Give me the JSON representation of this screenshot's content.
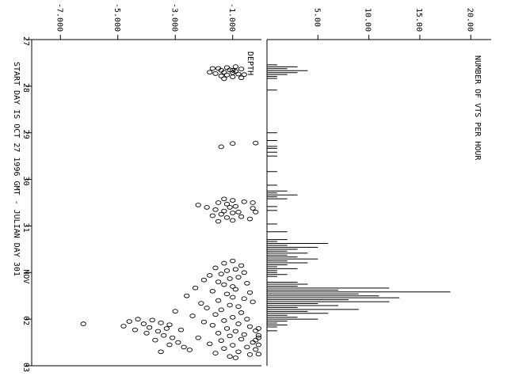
{
  "chart_data": {
    "type": "scatter+bar",
    "title": "NUMBER OF VTS PER HOUR",
    "xlabel": "START DAY IS OCT 27 1996 GMT - JULIAN DAY 301",
    "x_ticks": [
      "27",
      "28",
      "29",
      "30",
      "31",
      "NOV",
      "02",
      "03"
    ],
    "x_range_days": [
      27,
      34
    ],
    "histogram": {
      "ylabel": "NUMBER OF VTS PER HOUR",
      "y_ticks": [
        "5.00",
        "10.00",
        "15.00",
        "20.00"
      ],
      "ylim": [
        0,
        22
      ],
      "bins_hours_since_start": [
        13,
        14,
        15,
        16,
        17,
        18,
        19,
        20,
        26,
        48,
        52,
        55,
        56,
        58,
        60,
        68,
        75,
        78,
        79,
        80,
        81,
        82,
        86,
        88,
        95,
        99,
        103,
        104,
        105,
        106,
        107,
        108,
        109,
        110,
        111,
        112,
        113,
        114,
        115,
        116,
        117,
        118,
        119,
        120,
        121,
        122,
        125,
        126,
        127,
        128,
        129,
        130,
        131,
        132,
        133,
        134,
        135,
        136,
        137,
        138,
        139,
        140,
        141,
        142,
        143,
        144,
        145,
        146,
        147,
        148,
        150
      ],
      "counts": [
        1,
        3,
        2,
        4,
        3,
        2,
        1,
        1,
        1,
        1,
        1,
        1,
        1,
        1,
        1,
        1,
        1,
        2,
        1,
        3,
        1,
        2,
        1,
        1,
        1,
        2,
        2,
        1,
        6,
        2,
        5,
        3,
        2,
        4,
        2,
        3,
        5,
        2,
        4,
        2,
        1,
        3,
        1,
        1,
        2,
        1,
        3,
        4,
        3,
        12,
        7,
        18,
        9,
        11,
        13,
        8,
        12,
        5,
        7,
        3,
        9,
        4,
        6,
        2,
        3,
        5,
        2,
        1,
        2,
        1,
        1
      ]
    },
    "scatter": {
      "ylabel": "DEPTH",
      "y_ticks": [
        "-1.000",
        "-3.000",
        "-5.000",
        "-7.000"
      ],
      "ylim": [
        -8,
        0
      ],
      "points_days_depth": [
        [
          27.58,
          -0.9
        ],
        [
          27.6,
          -1.2
        ],
        [
          27.62,
          -1.5
        ],
        [
          27.63,
          -0.7
        ],
        [
          27.65,
          -1.1
        ],
        [
          27.66,
          -1.4
        ],
        [
          27.68,
          -0.9
        ],
        [
          27.7,
          -1.3
        ],
        [
          27.71,
          -1.0
        ],
        [
          27.73,
          -1.6
        ],
        [
          27.74,
          -0.8
        ],
        [
          27.76,
          -1.2
        ],
        [
          27.78,
          -1.4
        ],
        [
          27.8,
          -1.0
        ],
        [
          27.82,
          -0.7
        ],
        [
          27.84,
          -1.3
        ],
        [
          27.62,
          -1.7
        ],
        [
          27.7,
          -1.8
        ],
        [
          27.75,
          -0.6
        ],
        [
          27.66,
          -1.0
        ],
        [
          29.23,
          -1.0
        ],
        [
          29.3,
          -1.4
        ],
        [
          29.22,
          -0.2
        ],
        [
          30.42,
          -1.3
        ],
        [
          30.45,
          -1.0
        ],
        [
          30.48,
          -0.6
        ],
        [
          30.5,
          -1.5
        ],
        [
          30.53,
          -1.2
        ],
        [
          30.55,
          -2.2
        ],
        [
          30.58,
          -0.9
        ],
        [
          30.6,
          -1.1
        ],
        [
          30.62,
          -0.3
        ],
        [
          30.65,
          -1.6
        ],
        [
          30.68,
          -1.3
        ],
        [
          30.7,
          -0.8
        ],
        [
          30.72,
          -1.0
        ],
        [
          30.75,
          -1.4
        ],
        [
          30.78,
          -1.7
        ],
        [
          30.8,
          -0.7
        ],
        [
          30.82,
          -1.2
        ],
        [
          30.85,
          -0.4
        ],
        [
          30.88,
          -1.0
        ],
        [
          30.9,
          -1.5
        ],
        [
          30.5,
          -0.3
        ],
        [
          30.6,
          -1.9
        ],
        [
          30.7,
          -0.2
        ],
        [
          31.75,
          -1.0
        ],
        [
          31.8,
          -1.3
        ],
        [
          31.85,
          -0.7
        ],
        [
          31.9,
          -1.6
        ],
        [
          31.93,
          -0.9
        ],
        [
          31.96,
          -1.2
        ],
        [
          32.0,
          -0.6
        ],
        [
          32.03,
          -1.4
        ],
        [
          32.06,
          -1.8
        ],
        [
          32.1,
          -0.8
        ],
        [
          32.13,
          -1.1
        ],
        [
          32.16,
          -2.0
        ],
        [
          32.2,
          -1.5
        ],
        [
          32.23,
          -0.5
        ],
        [
          32.26,
          -1.3
        ],
        [
          32.3,
          -1.0
        ],
        [
          32.33,
          -2.3
        ],
        [
          32.36,
          -0.9
        ],
        [
          32.4,
          -1.7
        ],
        [
          32.43,
          -0.4
        ],
        [
          32.46,
          -1.2
        ],
        [
          32.5,
          -2.6
        ],
        [
          32.53,
          -1.0
        ],
        [
          32.56,
          -0.6
        ],
        [
          32.6,
          -1.5
        ],
        [
          32.63,
          -0.3
        ],
        [
          32.66,
          -2.1
        ],
        [
          32.7,
          -1.1
        ],
        [
          32.73,
          -0.8
        ],
        [
          32.76,
          -1.9
        ],
        [
          32.8,
          -1.4
        ],
        [
          32.83,
          -3.0
        ],
        [
          32.86,
          -0.7
        ],
        [
          32.9,
          -1.6
        ],
        [
          32.93,
          -2.4
        ],
        [
          32.96,
          -1.0
        ],
        [
          33.0,
          -0.5
        ],
        [
          33.03,
          -1.3
        ],
        [
          33.06,
          -2.0
        ],
        [
          33.1,
          -0.8
        ],
        [
          33.13,
          -1.7
        ],
        [
          33.16,
          -0.4
        ],
        [
          33.2,
          -1.2
        ],
        [
          33.23,
          -2.8
        ],
        [
          33.26,
          -0.9
        ],
        [
          33.3,
          -1.5
        ],
        [
          33.33,
          -0.6
        ],
        [
          33.36,
          -1.1
        ],
        [
          33.4,
          -2.2
        ],
        [
          33.43,
          -0.7
        ],
        [
          33.46,
          -1.4
        ],
        [
          33.5,
          -0.3
        ],
        [
          33.53,
          -1.8
        ],
        [
          33.56,
          -1.0
        ],
        [
          33.6,
          -0.5
        ],
        [
          33.63,
          -1.3
        ],
        [
          33.66,
          -2.5
        ],
        [
          33.7,
          -0.8
        ],
        [
          33.73,
          -1.6
        ],
        [
          33.76,
          -0.4
        ],
        [
          33.8,
          -1.1
        ],
        [
          33.83,
          -0.9
        ],
        [
          33.0,
          -4.3
        ],
        [
          33.02,
          -3.8
        ],
        [
          33.05,
          -4.6
        ],
        [
          33.08,
          -3.5
        ],
        [
          33.1,
          -4.1
        ],
        [
          33.12,
          -3.2
        ],
        [
          33.15,
          -4.8
        ],
        [
          33.18,
          -3.9
        ],
        [
          33.2,
          -3.3
        ],
        [
          33.23,
          -4.4
        ],
        [
          33.26,
          -3.6
        ],
        [
          33.3,
          -4.0
        ],
        [
          33.35,
          -3.4
        ],
        [
          33.4,
          -3.1
        ],
        [
          33.45,
          -3.7
        ],
        [
          33.1,
          -6.2
        ],
        [
          33.5,
          -2.9
        ],
        [
          33.55,
          -3.2
        ],
        [
          33.6,
          -2.7
        ],
        [
          33.7,
          -3.5
        ],
        [
          33.25,
          -0.2
        ],
        [
          33.35,
          -0.1
        ],
        [
          33.45,
          -0.2
        ],
        [
          33.55,
          -0.1
        ],
        [
          33.65,
          -0.2
        ],
        [
          33.75,
          -0.1
        ],
        [
          33.2,
          -0.1
        ],
        [
          33.4,
          -0.1
        ]
      ]
    }
  }
}
